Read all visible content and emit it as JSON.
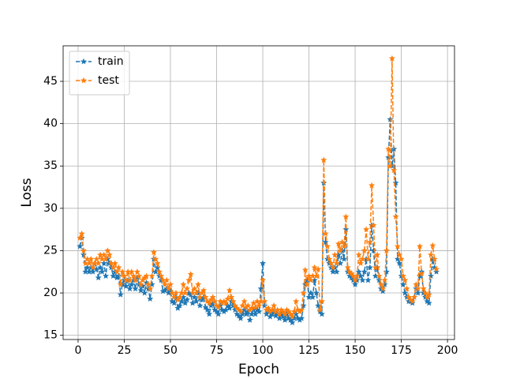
{
  "chart_data": {
    "type": "line",
    "xlabel": "Epoch",
    "ylabel": "Loss",
    "x": [
      1,
      2,
      3,
      4,
      5,
      6,
      7,
      8,
      9,
      10,
      11,
      12,
      13,
      14,
      15,
      16,
      17,
      18,
      19,
      20,
      21,
      22,
      23,
      24,
      25,
      26,
      27,
      28,
      29,
      30,
      31,
      32,
      33,
      34,
      35,
      36,
      37,
      38,
      39,
      40,
      41,
      42,
      43,
      44,
      45,
      46,
      47,
      48,
      49,
      50,
      51,
      52,
      53,
      54,
      55,
      56,
      57,
      58,
      59,
      60,
      61,
      62,
      63,
      64,
      65,
      66,
      67,
      68,
      69,
      70,
      71,
      72,
      73,
      74,
      75,
      76,
      77,
      78,
      79,
      80,
      81,
      82,
      83,
      84,
      85,
      86,
      87,
      88,
      89,
      90,
      91,
      92,
      93,
      94,
      95,
      96,
      97,
      98,
      99,
      100,
      101,
      102,
      103,
      104,
      105,
      106,
      107,
      108,
      109,
      110,
      111,
      112,
      113,
      114,
      115,
      116,
      117,
      118,
      119,
      120,
      121,
      122,
      123,
      124,
      125,
      126,
      127,
      128,
      129,
      130,
      131,
      132,
      133,
      134,
      135,
      136,
      137,
      138,
      139,
      140,
      141,
      142,
      143,
      144,
      145,
      146,
      147,
      148,
      149,
      150,
      151,
      152,
      153,
      154,
      155,
      156,
      157,
      158,
      159,
      160,
      161,
      162,
      163,
      164,
      165,
      166,
      167,
      168,
      169,
      170,
      171,
      172,
      173,
      174,
      175,
      176,
      177,
      178,
      179,
      180,
      181,
      182,
      183,
      184,
      185,
      186,
      187,
      188,
      189,
      190,
      191,
      192,
      193,
      194
    ],
    "series": [
      {
        "name": "train",
        "color": "#1f77b4",
        "values": [
          25.5,
          26.5,
          24.5,
          22.5,
          23,
          22.5,
          23,
          22.5,
          23.5,
          22.8,
          21.8,
          23,
          22.5,
          23.5,
          22,
          24,
          23.5,
          23,
          22,
          22.5,
          21.8,
          22,
          19.8,
          21,
          21.5,
          20.8,
          21.5,
          20.5,
          21,
          21.5,
          20.5,
          21.8,
          21,
          20.3,
          20.8,
          20,
          21.2,
          20.5,
          19.3,
          21,
          24,
          22.5,
          23,
          22,
          21.5,
          20.2,
          20.3,
          20.5,
          20,
          20.2,
          19,
          18.8,
          19.5,
          18.2,
          18.5,
          19,
          19.5,
          18.8,
          19.2,
          20,
          19.8,
          18.8,
          19.5,
          19,
          20,
          18.5,
          19.2,
          19.5,
          18.3,
          18,
          17.5,
          18.5,
          18.8,
          18,
          17.8,
          17.5,
          18.5,
          18,
          17.8,
          18,
          18.5,
          18.2,
          19,
          18.5,
          18,
          17.5,
          17.3,
          17,
          17.5,
          18,
          17.5,
          17.8,
          16.8,
          17.5,
          18,
          17.5,
          18,
          17.8,
          20.5,
          23.5,
          18.5,
          17.5,
          17.8,
          17.2,
          17.5,
          17.8,
          17.3,
          17.5,
          17,
          17.5,
          17.2,
          16.8,
          17.5,
          17,
          16.8,
          16.5,
          17,
          17.5,
          17,
          16.8,
          17,
          18.5,
          21,
          21.5,
          19.5,
          20,
          19.5,
          21.5,
          20,
          18.5,
          17.8,
          17.5,
          33,
          26,
          24,
          23.5,
          23,
          22.5,
          23,
          22.5,
          24.5,
          23.5,
          25,
          24,
          27.5,
          22.5,
          22,
          21.8,
          21.5,
          21,
          21.5,
          22.5,
          22,
          21.5,
          22.5,
          24,
          21.5,
          23,
          28,
          25,
          22,
          23,
          21.5,
          20.5,
          20.2,
          21,
          22.5,
          36,
          40.5,
          35,
          37,
          33,
          24,
          23.5,
          22,
          21,
          20,
          19.5,
          19,
          19,
          18.8,
          19.5,
          20.5,
          20,
          22,
          22.5,
          20,
          19.5,
          19,
          18.8,
          22,
          24,
          23,
          22.5
        ]
      },
      {
        "name": "test",
        "color": "#ff7f0e",
        "values": [
          26.5,
          27,
          25,
          23.5,
          24,
          23.5,
          24,
          23,
          23.5,
          24,
          23.5,
          24.5,
          24,
          24.5,
          24,
          25,
          24.5,
          23.5,
          23,
          23.5,
          22.5,
          23,
          21,
          22.5,
          22,
          21.5,
          22.5,
          21.5,
          22.5,
          22,
          21.5,
          22.5,
          22,
          21,
          21.5,
          21.8,
          22,
          21,
          20.5,
          22,
          24.8,
          24,
          23.5,
          22.5,
          22,
          21.5,
          21,
          21.5,
          20.5,
          21,
          20,
          19.5,
          20,
          19.2,
          19.5,
          20,
          21,
          20,
          20.5,
          21.5,
          22.2,
          20,
          20.5,
          20,
          21,
          19.5,
          20,
          20.3,
          19.5,
          19,
          18.8,
          19.2,
          19.5,
          19,
          18.5,
          18.3,
          19,
          18.8,
          19,
          18.8,
          19.3,
          20.3,
          19.5,
          19,
          18.5,
          18.2,
          18,
          17.8,
          18.5,
          19,
          18.3,
          18.5,
          18,
          18.2,
          18.8,
          18.3,
          19,
          18.5,
          19,
          21.5,
          19,
          18,
          18.2,
          17.8,
          18,
          18.5,
          17.8,
          18,
          17.5,
          18,
          17.8,
          17.5,
          18,
          17.8,
          17.5,
          17.2,
          17.8,
          19,
          18,
          17.8,
          18,
          20,
          22.7,
          21,
          22,
          21.5,
          22,
          23,
          22,
          22.8,
          18,
          19,
          35.7,
          27,
          25.5,
          24,
          23.5,
          23,
          24.5,
          23.5,
          25.8,
          25,
          26,
          25.5,
          29,
          23,
          22.5,
          22.3,
          22,
          21.5,
          22,
          24.5,
          23.5,
          24,
          25,
          27.5,
          24,
          26,
          32.7,
          28,
          23,
          24.5,
          22,
          21,
          20.5,
          21.5,
          25,
          37,
          35,
          47.7,
          34.5,
          29,
          25.5,
          24.5,
          24,
          22,
          21.5,
          20.5,
          19.5,
          19.2,
          19,
          19.5,
          21,
          20.5,
          25.5,
          22.3,
          20.5,
          20,
          19.5,
          19.8,
          24.5,
          25.6,
          24,
          22.8
        ]
      }
    ],
    "xlim": [
      -8.1,
      203.8
    ],
    "ylim": [
      14.5,
      49.2
    ],
    "xticks": [
      0,
      25,
      50,
      75,
      100,
      125,
      150,
      175,
      200
    ],
    "yticks": [
      15,
      20,
      25,
      30,
      35,
      40,
      45
    ],
    "grid": true,
    "legend": "upper left"
  }
}
